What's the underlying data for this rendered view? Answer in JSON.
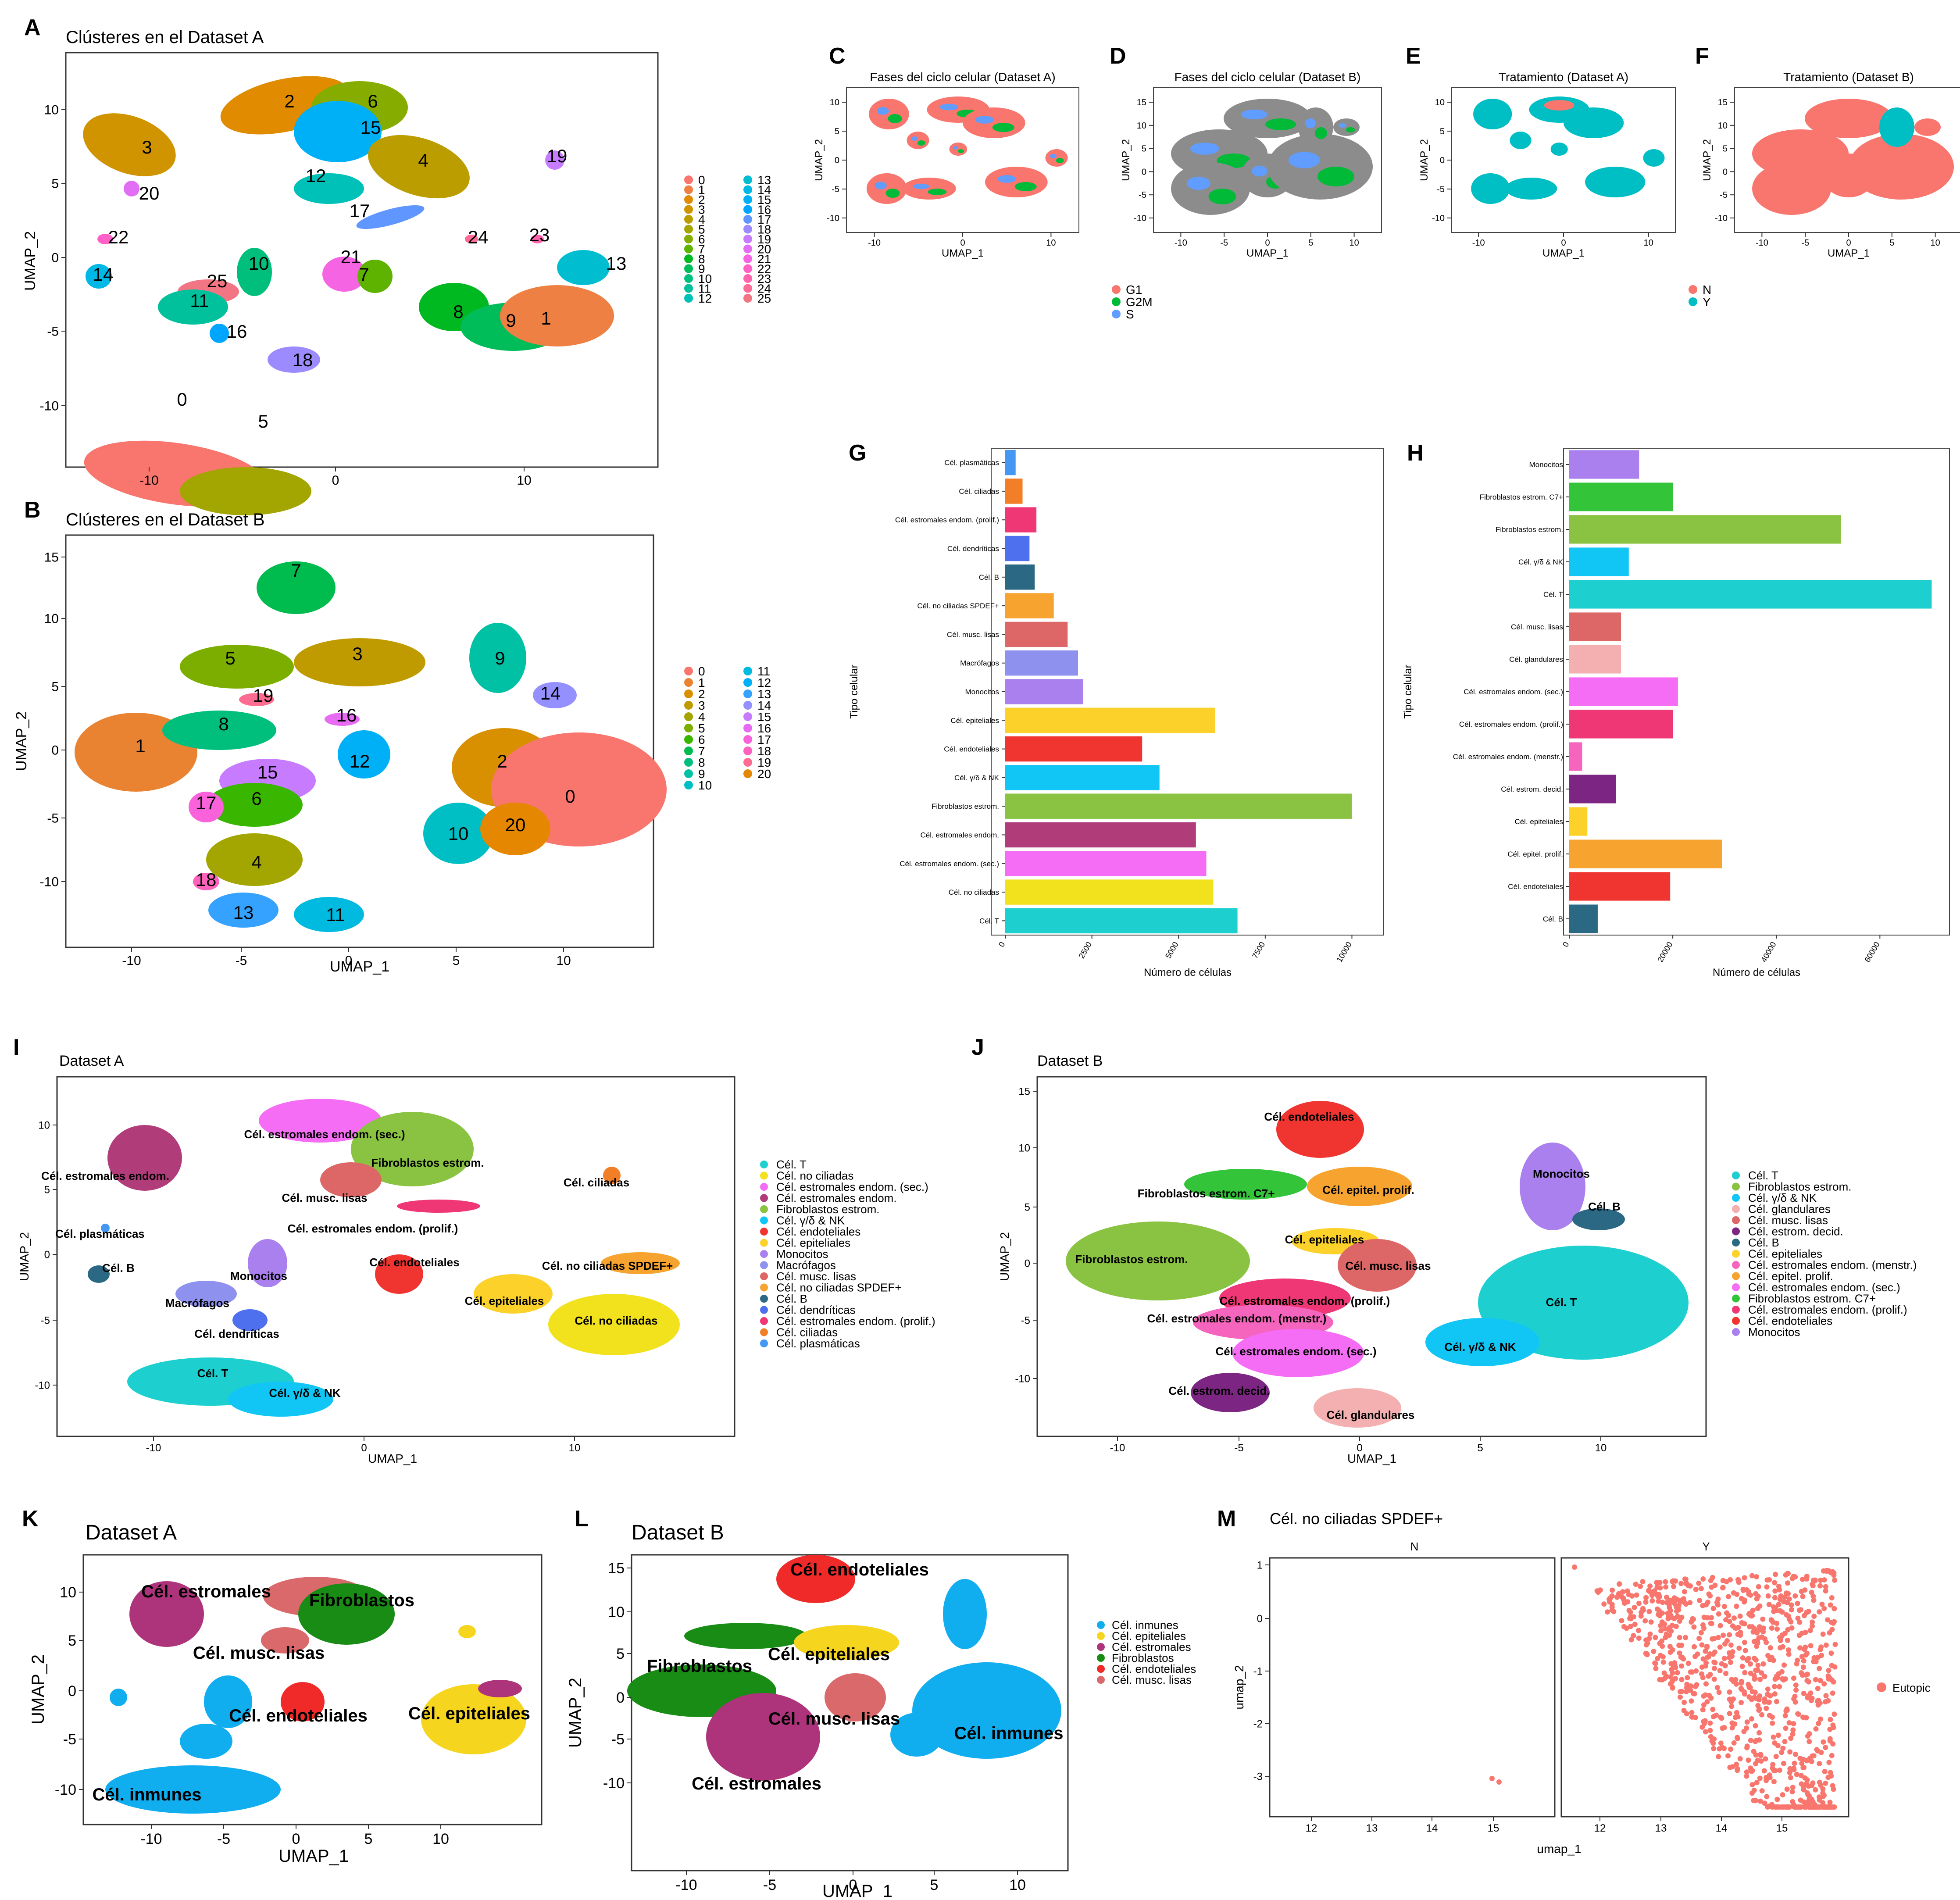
{
  "colors": {
    "clusters26": [
      "#F8766D",
      "#EE8043",
      "#E08B00",
      "#D09400",
      "#BB9D00",
      "#A3A500",
      "#86AC00",
      "#5EB300",
      "#00B81F",
      "#00BC59",
      "#00BF7D",
      "#00C19C",
      "#00C1B7",
      "#00BECF",
      "#00B8E5",
      "#00B0F6",
      "#00A5FF",
      "#5F96FF",
      "#9C8AFF",
      "#C77CFF",
      "#E36EF6",
      "#F564E3",
      "#FF61C9",
      "#FF63AD",
      "#FF6A98",
      "#F27583"
    ],
    "clusters21": [
      "#F8766D",
      "#EA8331",
      "#D89000",
      "#C09B00",
      "#A3A500",
      "#7CAE00",
      "#39B600",
      "#00BB4E",
      "#00BF7D",
      "#00C1A3",
      "#00BFC4",
      "#00BAE0",
      "#00B0F6",
      "#35A2FF",
      "#9590FF",
      "#C77CFF",
      "#E76BF3",
      "#FA62DB",
      "#FF62BC",
      "#FF6C91",
      "#E58700"
    ],
    "phase": {
      "G1": "#F8766D",
      "G2M": "#00BA38",
      "S": "#619CFF"
    },
    "treatment": {
      "N": "#F8766D",
      "Y": "#00BFC4"
    }
  },
  "panels": {
    "A": {
      "letter": "A",
      "title": "Clústeres en el Dataset A",
      "xlabel": "",
      "ylabel": "UMAP_2",
      "xticks": [
        "-10",
        "0",
        "10"
      ],
      "yticks": [
        "10",
        "5",
        "0",
        "-5",
        "-10"
      ],
      "legend": [
        "0",
        "1",
        "2",
        "3",
        "4",
        "5",
        "6",
        "7",
        "8",
        "9",
        "10",
        "11",
        "12",
        "13",
        "14",
        "15",
        "16",
        "17",
        "18",
        "19",
        "20",
        "21",
        "22",
        "23",
        "24",
        "25"
      ]
    },
    "B": {
      "letter": "B",
      "title": "Clústeres en el Dataset B",
      "xlabel": "UMAP_1",
      "ylabel": "UMAP_2",
      "xticks": [
        "-10",
        "-5",
        "0",
        "5",
        "10"
      ],
      "yticks": [
        "15",
        "10",
        "5",
        "0",
        "-5",
        "-10"
      ],
      "legend": [
        "0",
        "1",
        "2",
        "3",
        "4",
        "5",
        "6",
        "7",
        "8",
        "9",
        "10",
        "11",
        "12",
        "13",
        "14",
        "15",
        "16",
        "17",
        "18",
        "19",
        "20"
      ]
    },
    "C": {
      "letter": "C",
      "title": "Fases del ciclo celular (Dataset A)",
      "xlabel": "UMAP_1",
      "ylabel": "UMAP_2",
      "xticks": [
        "-10",
        "0",
        "10"
      ],
      "yticks": [
        "10",
        "5",
        "0",
        "-5",
        "-10"
      ]
    },
    "D": {
      "letter": "D",
      "title": "Fases del ciclo celular (Dataset B)",
      "xlabel": "UMAP_1",
      "ylabel": "UMAP_2",
      "xticks": [
        "-10",
        "-5",
        "0",
        "5",
        "10"
      ],
      "yticks": [
        "15",
        "10",
        "5",
        "0",
        "-5",
        "-10"
      ]
    },
    "E": {
      "letter": "E",
      "title": "Tratamiento (Dataset A)",
      "xlabel": "UMAP_1",
      "ylabel": "UMAP_2",
      "xticks": [
        "-10",
        "0",
        "10"
      ],
      "yticks": [
        "10",
        "5",
        "0",
        "-5",
        "-10"
      ]
    },
    "F": {
      "letter": "F",
      "title": "Tratamiento (Dataset B)",
      "xlabel": "UMAP_1",
      "ylabel": "UMAP_2",
      "xticks": [
        "-10",
        "-5",
        "0",
        "5",
        "10"
      ],
      "yticks": [
        "15",
        "10",
        "5",
        "0",
        "-5",
        "-10"
      ]
    },
    "phase_legend": [
      "G1",
      "G2M",
      "S"
    ],
    "treat_legend": [
      "N",
      "Y"
    ],
    "I": {
      "letter": "I",
      "title": "Dataset A",
      "xlabel": "UMAP_1",
      "ylabel": "UMAP_2",
      "xticks": [
        "-10",
        "0",
        "10"
      ],
      "yticks": [
        "10",
        "5",
        "0",
        "-5",
        "-10"
      ]
    },
    "J": {
      "letter": "J",
      "title": "Dataset B",
      "xlabel": "UMAP_1",
      "ylabel": "UMAP_2",
      "xticks": [
        "-10",
        "-5",
        "0",
        "5",
        "10"
      ],
      "yticks": [
        "15",
        "10",
        "5",
        "0",
        "-5",
        "-10"
      ]
    },
    "K": {
      "letter": "K",
      "title": "Dataset A",
      "xlabel": "UMAP_1",
      "ylabel": "UMAP_2",
      "xticks": [
        "-10",
        "-5",
        "0",
        "5",
        "10"
      ],
      "yticks": [
        "10",
        "5",
        "0",
        "-5",
        "-10"
      ]
    },
    "L": {
      "letter": "L",
      "title": "Dataset B",
      "xlabel": "UMAP_1",
      "ylabel": "UMAP_2",
      "xticks": [
        "-10",
        "-5",
        "0",
        "5",
        "10"
      ],
      "yticks": [
        "15",
        "10",
        "5",
        "0",
        "-5",
        "-10"
      ]
    },
    "M": {
      "letter": "M",
      "title": "Cél. no ciliadas SPDEF+",
      "xlabel": "umap_1",
      "ylabel": "umap_2",
      "facets": [
        "N",
        "Y"
      ],
      "xticks": [
        "12",
        "13",
        "14",
        "15"
      ],
      "yticks": [
        "1",
        "0",
        "-1",
        "-2",
        "-3"
      ],
      "legend": "Eutopic",
      "color": "#F8766D"
    }
  },
  "legends": {
    "I": [
      {
        "label": "Cél. T",
        "color": "#1ECFD0"
      },
      {
        "label": "Cél. no ciliadas",
        "color": "#F2E21E"
      },
      {
        "label": "Cél. estromales endom. (sec.)",
        "color": "#F56CF5"
      },
      {
        "label": "Cél. estromales endom.",
        "color": "#B13C7A"
      },
      {
        "label": "Fibroblastos estrom.",
        "color": "#89C341"
      },
      {
        "label": "Cél. γ/δ & NK",
        "color": "#11C6F5"
      },
      {
        "label": "Cél. endoteliales",
        "color": "#F0342F"
      },
      {
        "label": "Cél. epiteliales",
        "color": "#FBD12A"
      },
      {
        "label": "Monocitos",
        "color": "#A980EE"
      },
      {
        "label": "Macrófagos",
        "color": "#8E92EE"
      },
      {
        "label": "Cél. musc. lisas",
        "color": "#DD6666"
      },
      {
        "label": "Cél. no ciliadas SPDEF+",
        "color": "#F6A330"
      },
      {
        "label": "Cél. B",
        "color": "#2B6883"
      },
      {
        "label": "Cél. dendríticas",
        "color": "#4F70EE"
      },
      {
        "label": "Cél. estromales endom. (prolif.)",
        "color": "#EE3774"
      },
      {
        "label": "Cél. ciliadas",
        "color": "#F27E28"
      },
      {
        "label": "Cél. plasmáticas",
        "color": "#4497F2"
      }
    ],
    "J": [
      {
        "label": "Cél. T",
        "color": "#1ECFD0"
      },
      {
        "label": "Fibroblastos estrom.",
        "color": "#89C341"
      },
      {
        "label": "Cél. γ/δ & NK",
        "color": "#11C6F5"
      },
      {
        "label": "Cél. glandulares",
        "color": "#F4AFB0"
      },
      {
        "label": "Cél. musc. lisas",
        "color": "#DD6666"
      },
      {
        "label": "Cél. estrom. decid.",
        "color": "#7D2582"
      },
      {
        "label": "Cél. B",
        "color": "#2B6883"
      },
      {
        "label": "Cél. epiteliales",
        "color": "#FBD12A"
      },
      {
        "label": "Cél. estromales endom. (menstr.)",
        "color": "#F564BD"
      },
      {
        "label": "Cél. epitel. prolif.",
        "color": "#F6A330"
      },
      {
        "label": "Cél. estromales endom. (sec.)",
        "color": "#F56CF5"
      },
      {
        "label": "Fibroblastos estrom. C7+",
        "color": "#33C43A"
      },
      {
        "label": "Cél. estromales endom. (prolif.)",
        "color": "#EE3774"
      },
      {
        "label": "Cél. endoteliales",
        "color": "#F0342F"
      },
      {
        "label": "Monocitos",
        "color": "#A980EE"
      }
    ],
    "L": [
      {
        "label": "Cél. inmunes",
        "color": "#10ADEF"
      },
      {
        "label": "Cél. epiteliales",
        "color": "#F6D51F"
      },
      {
        "label": "Cél. estromales",
        "color": "#AD347B"
      },
      {
        "label": "Fibroblastos",
        "color": "#198C16"
      },
      {
        "label": "Cél. endoteliales",
        "color": "#EF2A28"
      },
      {
        "label": "Cél. musc. lisas",
        "color": "#D9696A"
      }
    ]
  },
  "umap_labels": {
    "A": [
      "0",
      "5",
      "3",
      "20",
      "2",
      "6",
      "15",
      "4",
      "12",
      "17",
      "19",
      "22",
      "14",
      "25",
      "10",
      "11",
      "16",
      "18",
      "21",
      "7",
      "24",
      "23",
      "13",
      "8",
      "9",
      "1"
    ],
    "B": [
      "7",
      "5",
      "3",
      "19",
      "16",
      "1",
      "8",
      "15",
      "6",
      "17",
      "4",
      "18",
      "13",
      "11",
      "12",
      "9",
      "14",
      "2",
      "0",
      "10",
      "20"
    ],
    "I": [
      "Cél. estromales endom. (sec.)",
      "Cél. estromales endom.",
      "Fibroblastos estrom.",
      "Cél. musc. lisas",
      "Cél. estromales endom. (prolif.)",
      "Cél. ciliadas",
      "Cél. plasmáticas",
      "Cél. B",
      "Monocitos",
      "Macrófagos",
      "Cél. dendríticas",
      "Cél. endoteliales",
      "Cél. no ciliadas SPDEF+",
      "Cél. epiteliales",
      "Cél. no ciliadas",
      "Cél. T",
      "Cél. γ/δ & NK"
    ],
    "J": [
      "Cél. endoteliales",
      "Fibroblastos estrom. C7+",
      "Cél. epitel. prolif.",
      "Monocitos",
      "Cél. B",
      "Cél. epiteliales",
      "Fibroblastos estrom.",
      "Cél. musc. lisas",
      "Cél. estromales endom. (prolif.)",
      "Cél. estromales endom. (menstr.)",
      "Cél. T",
      "Cél. estromales endom. (sec.)",
      "Cél. γ/δ & NK",
      "Cél. estrom. decid.",
      "Cél. glandulares"
    ],
    "K": [
      "Cél. estromales",
      "Fibroblastos",
      "Cél. musc. lisas",
      "Cél. endoteliales",
      "Cél. epiteliales",
      "Cél. inmunes"
    ],
    "L": [
      "Cél. endoteliales",
      "Cél. epiteliales",
      "Fibroblastos",
      "Cél. musc. lisas",
      "Cél. inmunes",
      "Cél. estromales"
    ]
  },
  "chart_data": [
    {
      "panel": "G",
      "type": "bar",
      "orientation": "horizontal",
      "xlabel": "Número de células",
      "ylabel": "Tipo celular",
      "xlim": [
        0,
        10500
      ],
      "xticks": [
        "0",
        "2500",
        "5000",
        "7500",
        "10000"
      ],
      "categories": [
        "Cél. plasmáticas",
        "Cél. ciliadas",
        "Cél. estromales endom. (prolif.)",
        "Cél. dendríticas",
        "Cél. B",
        "Cél. no ciliadas SPDEF+",
        "Cél. musc. lisas",
        "Macrófagos",
        "Monocitos",
        "Cél. epiteliales",
        "Cél. endoteliales",
        "Cél. γ/δ & NK",
        "Fibroblastos estrom.",
        "Cél. estromales endom.",
        "Cél. estromales endom. (sec.)",
        "Cél. no ciliadas",
        "Cél. T"
      ],
      "values": [
        300,
        500,
        900,
        700,
        850,
        1400,
        1800,
        2100,
        2250,
        6050,
        3950,
        4450,
        10000,
        5500,
        5800,
        6000,
        6700
      ],
      "colors": [
        "#4497F2",
        "#F27E28",
        "#EE3774",
        "#4F70EE",
        "#2B6883",
        "#F6A330",
        "#DD6666",
        "#8E92EE",
        "#A980EE",
        "#FBD12A",
        "#F0342F",
        "#11C6F5",
        "#89C341",
        "#B13C7A",
        "#F56CF5",
        "#F2E21E",
        "#1ECFD0"
      ]
    },
    {
      "panel": "H",
      "type": "bar",
      "orientation": "horizontal",
      "xlabel": "Número de células",
      "ylabel": "Tipo celular",
      "xlim": [
        0,
        72000
      ],
      "xticks": [
        "0",
        "20000",
        "40000",
        "60000"
      ],
      "categories": [
        "Monocitos",
        "Fibroblastos estrom. C7+",
        "Fibroblastos estrom.",
        "Cél. γ/δ & NK",
        "Cél. T",
        "Cél. musc. lisas",
        "Cél. glandulares",
        "Cél. estromales endom. (sec.)",
        "Cél. estromales endom. (prolif.)",
        "Cél. estromales endom. (menstr.)",
        "Cél. estrom. decid.",
        "Cél. epiteliales",
        "Cél. epitel. prolif.",
        "Cél. endoteliales",
        "Cél. B"
      ],
      "values": [
        13500,
        20000,
        52500,
        11500,
        70000,
        10000,
        10000,
        21000,
        20000,
        2500,
        9000,
        3500,
        29500,
        19500,
        5500
      ],
      "colors": [
        "#A980EE",
        "#33C43A",
        "#89C341",
        "#11C6F5",
        "#1ECFD0",
        "#DD6666",
        "#F4AFB0",
        "#F56CF5",
        "#EE3774",
        "#F564BD",
        "#7D2582",
        "#FBD12A",
        "#F6A330",
        "#F0342F",
        "#2B6883"
      ]
    }
  ]
}
